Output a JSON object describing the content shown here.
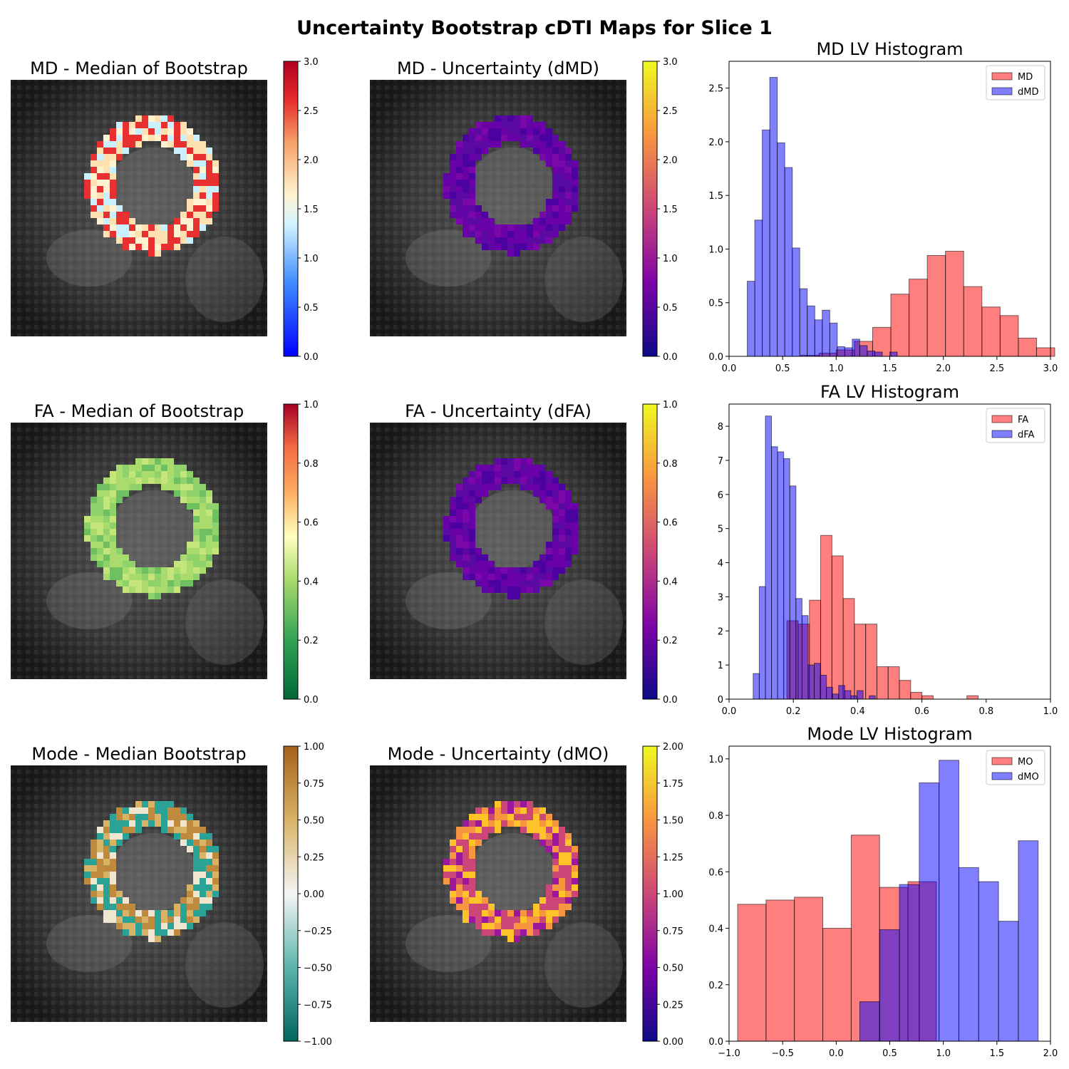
{
  "figure": {
    "title": "Uncertainty Bootstrap cDTI Maps for Slice 1",
    "colors": {
      "red_hist": "#ff0000",
      "blue_hist": "#0000ff",
      "edge": "#000000"
    }
  },
  "panels": [
    {
      "title": "MD - Median of Bootstrap",
      "colormap": "bwr-like (blue-white-red)",
      "colorbar_ticks": [
        "0.0",
        "0.5",
        "1.0",
        "1.5",
        "2.0",
        "2.5",
        "3.0"
      ]
    },
    {
      "title": "MD - Uncertainty (dMD)",
      "colormap": "plasma",
      "colorbar_ticks": [
        "0.0",
        "0.5",
        "1.0",
        "1.5",
        "2.0",
        "2.5",
        "3.0"
      ]
    },
    {
      "title": "FA - Median of Bootstrap",
      "colormap": "RdYlGn reversed",
      "colorbar_ticks": [
        "0.0",
        "0.2",
        "0.4",
        "0.6",
        "0.8",
        "1.0"
      ]
    },
    {
      "title": "FA - Uncertainty (dFA)",
      "colormap": "plasma",
      "colorbar_ticks": [
        "0.0",
        "0.2",
        "0.4",
        "0.6",
        "0.8",
        "1.0"
      ]
    },
    {
      "title": "Mode - Median Bootstrap",
      "colormap": "BrBG reversed",
      "colorbar_ticks": [
        "1.00",
        "0.75",
        "0.50",
        "0.25",
        "0.00",
        "−0.25",
        "−0.50",
        "−0.75",
        "−1.00"
      ]
    },
    {
      "title": "Mode - Uncertainty (dMO)",
      "colormap": "plasma",
      "colorbar_ticks": [
        "0.00",
        "0.25",
        "0.50",
        "0.75",
        "1.00",
        "1.25",
        "1.50",
        "1.75",
        "2.00"
      ]
    }
  ],
  "chart_data": [
    {
      "type": "bar",
      "title": "MD LV Histogram",
      "xlim": [
        0,
        3.0
      ],
      "ylim": [
        0,
        2.75
      ],
      "xticks": [
        "0.0",
        "0.5",
        "1.0",
        "1.5",
        "2.0",
        "2.5",
        "3.0"
      ],
      "yticks": [
        "0.0",
        "0.5",
        "1.0",
        "1.5",
        "2.0",
        "2.5"
      ],
      "legend": "top-right",
      "series": [
        {
          "name": "MD",
          "color": "#ff0000",
          "bin_edges": [
            0.67,
            0.84,
            1.0,
            1.17,
            1.34,
            1.51,
            1.68,
            1.85,
            2.02,
            2.19,
            2.36,
            2.53,
            2.7,
            2.87,
            3.04
          ],
          "values": [
            0.01,
            0.03,
            0.06,
            0.14,
            0.27,
            0.58,
            0.72,
            0.94,
            0.98,
            0.65,
            0.46,
            0.38,
            0.17,
            0.08
          ]
        },
        {
          "name": "dMD",
          "color": "#0000ff",
          "bin_edges": [
            0.17,
            0.24,
            0.31,
            0.38,
            0.45,
            0.52,
            0.59,
            0.66,
            0.73,
            0.8,
            0.87,
            0.94,
            1.01,
            1.08,
            1.15,
            1.22,
            1.29,
            1.36,
            1.43,
            1.5,
            1.57
          ],
          "values": [
            0.7,
            1.27,
            2.11,
            2.6,
            1.99,
            1.76,
            1.01,
            0.63,
            0.47,
            0.34,
            0.43,
            0.31,
            0.09,
            0.08,
            0.16,
            0.1,
            0.05,
            0.04,
            0.0,
            0.04
          ]
        }
      ]
    },
    {
      "type": "bar",
      "title": "FA LV Histogram",
      "xlim": [
        0,
        1.0
      ],
      "ylim": [
        0,
        8.65
      ],
      "xticks": [
        "0.0",
        "0.2",
        "0.4",
        "0.6",
        "0.8",
        "1.0"
      ],
      "yticks": [
        "0",
        "1",
        "2",
        "3",
        "4",
        "5",
        "6",
        "7",
        "8"
      ],
      "legend": "top-right",
      "series": [
        {
          "name": "FA",
          "color": "#ff0000",
          "bin_edges": [
            0.18,
            0.215,
            0.25,
            0.285,
            0.32,
            0.355,
            0.39,
            0.425,
            0.46,
            0.495,
            0.53,
            0.565,
            0.6,
            0.635,
            0.67,
            0.705,
            0.74,
            0.775
          ],
          "values": [
            2.3,
            2.2,
            2.9,
            4.8,
            4.2,
            2.95,
            2.2,
            2.2,
            0.95,
            0.95,
            0.55,
            0.2,
            0.1,
            0.0,
            0.0,
            0.0,
            0.1
          ]
        },
        {
          "name": "dFA",
          "color": "#0000ff",
          "bin_edges": [
            0.075,
            0.094,
            0.113,
            0.132,
            0.151,
            0.17,
            0.189,
            0.208,
            0.227,
            0.246,
            0.265,
            0.284,
            0.303,
            0.322,
            0.341,
            0.36,
            0.379,
            0.398,
            0.417,
            0.436,
            0.455
          ],
          "values": [
            0.75,
            3.3,
            8.3,
            7.4,
            7.25,
            7.05,
            6.25,
            2.95,
            2.45,
            1.0,
            1.05,
            0.7,
            0.35,
            0.15,
            0.4,
            0.25,
            0.1,
            0.25,
            0.0,
            0.1
          ]
        }
      ]
    },
    {
      "type": "bar",
      "title": "Mode LV Histogram",
      "xlim": [
        -1.0,
        2.0
      ],
      "ylim": [
        0,
        1.045
      ],
      "xticks": [
        "−1.0",
        "−0.5",
        "0.0",
        "0.5",
        "1.0",
        "1.5",
        "2.0"
      ],
      "yticks": [
        "0.0",
        "0.2",
        "0.4",
        "0.6",
        "0.8",
        "1.0"
      ],
      "legend": "top-right",
      "series": [
        {
          "name": "MO",
          "color": "#ff0000",
          "bin_edges": [
            -0.92,
            -0.655,
            -0.39,
            -0.125,
            0.14,
            0.405,
            0.67,
            0.935
          ],
          "values": [
            0.485,
            0.5,
            0.51,
            0.4,
            0.73,
            0.545,
            0.565
          ]
        },
        {
          "name": "dMO",
          "color": "#0000ff",
          "bin_edges": [
            0.22,
            0.405,
            0.59,
            0.775,
            0.96,
            1.145,
            1.33,
            1.515,
            1.7,
            1.885
          ],
          "values": [
            0.14,
            0.395,
            0.555,
            0.915,
            0.995,
            0.615,
            0.565,
            0.425,
            0.71
          ]
        }
      ]
    }
  ]
}
